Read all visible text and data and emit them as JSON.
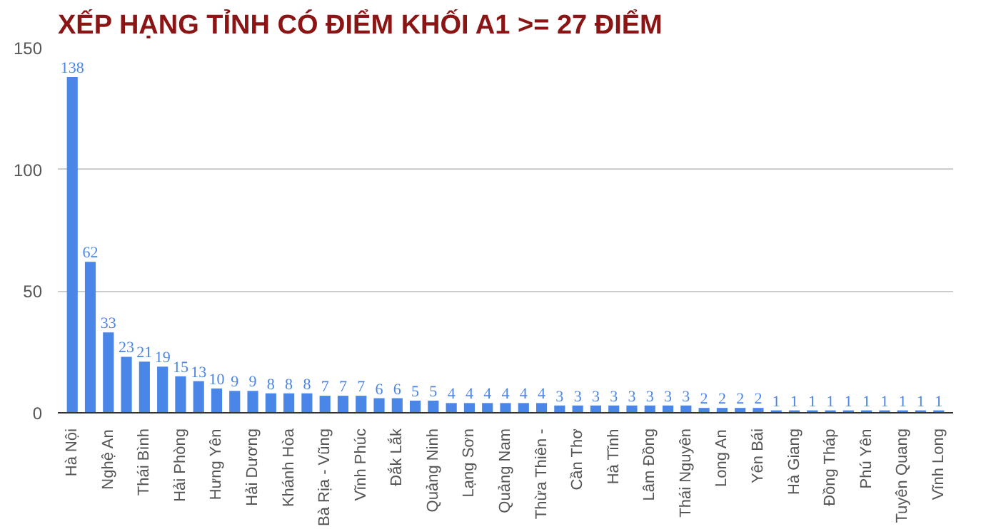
{
  "chart_data": {
    "type": "bar",
    "title": "XẾP HẠNG TỈNH CÓ ĐIỂM KHỐI A1 >= 27 ĐIỂM",
    "categories": [
      "Hà Nội",
      null,
      "Nghệ An",
      null,
      "Thái Bình",
      null,
      "Hải Phòng",
      null,
      "Hưng Yên",
      null,
      "Hải Dương",
      null,
      "Khánh Hòa",
      null,
      "Bà Rịa - Vũng",
      null,
      "Vĩnh Phúc",
      null,
      "Đắk Lắk",
      null,
      "Quảng Ninh",
      null,
      "Lạng Sơn",
      null,
      "Quảng Nam",
      null,
      "Thừa Thiên -",
      null,
      "Cần Thơ",
      null,
      "Hà Tĩnh",
      null,
      "Lâm Đồng",
      null,
      "Thái Nguyên",
      null,
      "Long An",
      null,
      "Yên Bái",
      null,
      "Hà Giang",
      null,
      "Đồng Tháp",
      null,
      "Phú Yên",
      null,
      "Tuyên Quang",
      null,
      "Vĩnh Long"
    ],
    "values": [
      138,
      62,
      33,
      23,
      21,
      19,
      15,
      13,
      10,
      9,
      9,
      8,
      8,
      8,
      7,
      7,
      7,
      6,
      6,
      5,
      5,
      4,
      4,
      4,
      4,
      4,
      4,
      3,
      3,
      3,
      3,
      3,
      3,
      3,
      3,
      2,
      2,
      2,
      2,
      1,
      1,
      1,
      1,
      1,
      1,
      1,
      1,
      1,
      1
    ],
    "color": "#4a86e8",
    "ylim": [
      0,
      150
    ],
    "yticks": [
      0,
      50,
      100,
      150
    ],
    "grid": "y",
    "data_labels": true
  }
}
